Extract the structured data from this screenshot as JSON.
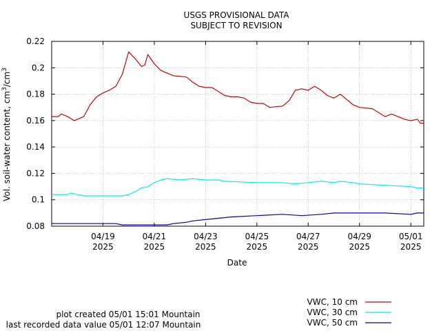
{
  "chart_data": {
    "type": "line",
    "title": "USGS PROVISIONAL DATA",
    "subtitle": "SUBJECT TO REVISION",
    "xlabel": "Date",
    "ylabel_main": "Vol. soil-water content, cm",
    "ylabel_sup1": "3",
    "ylabel_mid": "/cm",
    "ylabel_sup2": "3",
    "x_domain": [
      "2025-04-17T00:00",
      "2025-05-01T12:07"
    ],
    "ylim": [
      0.08,
      0.22
    ],
    "grid": true,
    "yticks": [
      {
        "value": 0.08,
        "label": "0.08"
      },
      {
        "value": 0.1,
        "label": "0.1"
      },
      {
        "value": 0.12,
        "label": "0.12"
      },
      {
        "value": 0.14,
        "label": "0.14"
      },
      {
        "value": 0.16,
        "label": "0.16"
      },
      {
        "value": 0.18,
        "label": "0.18"
      },
      {
        "value": 0.2,
        "label": "0.2"
      },
      {
        "value": 0.22,
        "label": "0.22"
      }
    ],
    "xticks": [
      {
        "value": "2025-04-19T00:00",
        "line1": "04/19",
        "line2": "2025"
      },
      {
        "value": "2025-04-21T00:00",
        "line1": "04/21",
        "line2": "2025"
      },
      {
        "value": "2025-04-23T00:00",
        "line1": "04/23",
        "line2": "2025"
      },
      {
        "value": "2025-04-25T00:00",
        "line1": "04/25",
        "line2": "2025"
      },
      {
        "value": "2025-04-27T00:00",
        "line1": "04/27",
        "line2": "2025"
      },
      {
        "value": "2025-04-29T00:00",
        "line1": "04/29",
        "line2": "2025"
      },
      {
        "value": "2025-05-01T00:00",
        "line1": "05/01",
        "line2": "2025"
      }
    ],
    "legend_position": "bottom-right",
    "series": [
      {
        "name": "VWC, 10 cm",
        "color": "#cc0000",
        "points": [
          [
            "2025-04-17T00:00",
            0.163
          ],
          [
            "2025-04-17T06:00",
            0.163
          ],
          [
            "2025-04-17T09:00",
            0.165
          ],
          [
            "2025-04-17T15:00",
            0.163
          ],
          [
            "2025-04-17T21:00",
            0.16
          ],
          [
            "2025-04-18T06:00",
            0.163
          ],
          [
            "2025-04-18T12:00",
            0.172
          ],
          [
            "2025-04-18T18:00",
            0.178
          ],
          [
            "2025-04-19T00:00",
            0.181
          ],
          [
            "2025-04-19T06:00",
            0.183
          ],
          [
            "2025-04-19T12:00",
            0.186
          ],
          [
            "2025-04-19T18:00",
            0.195
          ],
          [
            "2025-04-20T00:00",
            0.212
          ],
          [
            "2025-04-20T06:00",
            0.207
          ],
          [
            "2025-04-20T12:00",
            0.201
          ],
          [
            "2025-04-20T15:00",
            0.202
          ],
          [
            "2025-04-20T18:00",
            0.21
          ],
          [
            "2025-04-21T00:00",
            0.203
          ],
          [
            "2025-04-21T06:00",
            0.198
          ],
          [
            "2025-04-21T12:00",
            0.196
          ],
          [
            "2025-04-21T18:00",
            0.194
          ],
          [
            "2025-04-22T06:00",
            0.193
          ],
          [
            "2025-04-22T12:00",
            0.189
          ],
          [
            "2025-04-22T18:00",
            0.186
          ],
          [
            "2025-04-23T00:00",
            0.185
          ],
          [
            "2025-04-23T06:00",
            0.185
          ],
          [
            "2025-04-23T12:00",
            0.182
          ],
          [
            "2025-04-23T18:00",
            0.179
          ],
          [
            "2025-04-24T00:00",
            0.178
          ],
          [
            "2025-04-24T06:00",
            0.178
          ],
          [
            "2025-04-24T12:00",
            0.177
          ],
          [
            "2025-04-24T18:00",
            0.174
          ],
          [
            "2025-04-25T00:00",
            0.173
          ],
          [
            "2025-04-25T06:00",
            0.173
          ],
          [
            "2025-04-25T12:00",
            0.17
          ],
          [
            "2025-04-26T00:00",
            0.171
          ],
          [
            "2025-04-26T06:00",
            0.175
          ],
          [
            "2025-04-26T12:00",
            0.183
          ],
          [
            "2025-04-26T18:00",
            0.184
          ],
          [
            "2025-04-27T00:00",
            0.183
          ],
          [
            "2025-04-27T06:00",
            0.186
          ],
          [
            "2025-04-27T12:00",
            0.183
          ],
          [
            "2025-04-27T18:00",
            0.179
          ],
          [
            "2025-04-28T00:00",
            0.177
          ],
          [
            "2025-04-28T06:00",
            0.18
          ],
          [
            "2025-04-28T12:00",
            0.176
          ],
          [
            "2025-04-28T18:00",
            0.172
          ],
          [
            "2025-04-29T00:00",
            0.17
          ],
          [
            "2025-04-29T12:00",
            0.169
          ],
          [
            "2025-04-29T18:00",
            0.166
          ],
          [
            "2025-04-30T00:00",
            0.163
          ],
          [
            "2025-04-30T06:00",
            0.165
          ],
          [
            "2025-04-30T12:00",
            0.163
          ],
          [
            "2025-04-30T18:00",
            0.161
          ],
          [
            "2025-05-01T00:00",
            0.16
          ],
          [
            "2025-05-01T06:00",
            0.161
          ],
          [
            "2025-05-01T09:00",
            0.158
          ],
          [
            "2025-05-01T12:07",
            0.158
          ]
        ]
      },
      {
        "name": "VWC, 30 cm",
        "color": "#00eeee",
        "points": [
          [
            "2025-04-17T00:00",
            0.104
          ],
          [
            "2025-04-17T15:00",
            0.104
          ],
          [
            "2025-04-17T18:00",
            0.105
          ],
          [
            "2025-04-18T00:00",
            0.104
          ],
          [
            "2025-04-18T06:00",
            0.103
          ],
          [
            "2025-04-19T18:00",
            0.103
          ],
          [
            "2025-04-20T00:00",
            0.104
          ],
          [
            "2025-04-20T06:00",
            0.106
          ],
          [
            "2025-04-20T12:00",
            0.109
          ],
          [
            "2025-04-20T18:00",
            0.11
          ],
          [
            "2025-04-21T00:00",
            0.113
          ],
          [
            "2025-04-21T06:00",
            0.115
          ],
          [
            "2025-04-21T12:00",
            0.116
          ],
          [
            "2025-04-22T00:00",
            0.115
          ],
          [
            "2025-04-22T12:00",
            0.116
          ],
          [
            "2025-04-23T00:00",
            0.115
          ],
          [
            "2025-04-23T12:00",
            0.115
          ],
          [
            "2025-04-23T18:00",
            0.114
          ],
          [
            "2025-04-25T00:00",
            0.113
          ],
          [
            "2025-04-26T00:00",
            0.113
          ],
          [
            "2025-04-26T12:00",
            0.112
          ],
          [
            "2025-04-27T00:00",
            0.113
          ],
          [
            "2025-04-27T12:00",
            0.114
          ],
          [
            "2025-04-28T00:00",
            0.113
          ],
          [
            "2025-04-28T06:00",
            0.114
          ],
          [
            "2025-04-28T18:00",
            0.113
          ],
          [
            "2025-04-29T00:00",
            0.112
          ],
          [
            "2025-04-30T00:00",
            0.111
          ],
          [
            "2025-05-01T00:00",
            0.11
          ],
          [
            "2025-05-01T06:00",
            0.109
          ],
          [
            "2025-05-01T12:07",
            0.109
          ]
        ]
      },
      {
        "name": "VWC, 50 cm",
        "color": "#0000bb",
        "points": [
          [
            "2025-04-17T00:00",
            0.082
          ],
          [
            "2025-04-19T12:00",
            0.082
          ],
          [
            "2025-04-19T18:00",
            0.081
          ],
          [
            "2025-04-21T12:00",
            0.081
          ],
          [
            "2025-04-21T18:00",
            0.082
          ],
          [
            "2025-04-22T06:00",
            0.083
          ],
          [
            "2025-04-22T12:00",
            0.084
          ],
          [
            "2025-04-23T00:00",
            0.085
          ],
          [
            "2025-04-23T12:00",
            0.086
          ],
          [
            "2025-04-24T00:00",
            0.087
          ],
          [
            "2025-04-25T00:00",
            0.088
          ],
          [
            "2025-04-26T00:00",
            0.089
          ],
          [
            "2025-04-26T18:00",
            0.088
          ],
          [
            "2025-04-27T12:00",
            0.089
          ],
          [
            "2025-04-28T00:00",
            0.09
          ],
          [
            "2025-04-30T00:00",
            0.09
          ],
          [
            "2025-05-01T00:00",
            0.089
          ],
          [
            "2025-05-01T06:00",
            0.09
          ],
          [
            "2025-05-01T12:07",
            0.09
          ]
        ]
      }
    ]
  },
  "footer": {
    "created": "plot created 05/01 15:01 Mountain",
    "last_recorded": "last recorded data value 05/01 12:07 Mountain"
  }
}
